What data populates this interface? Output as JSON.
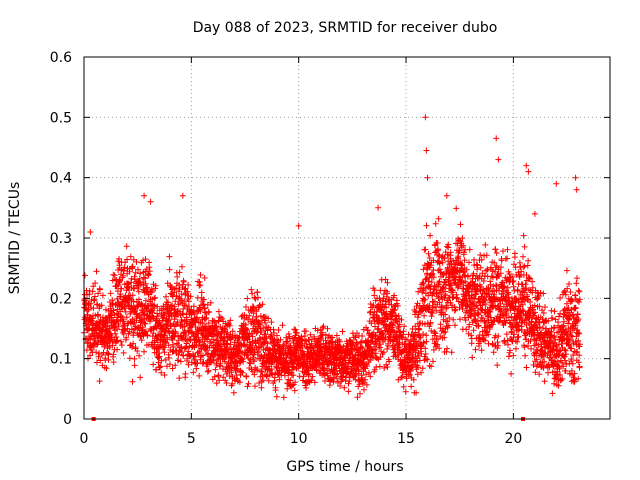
{
  "chart_data": {
    "type": "scatter",
    "title": "Day 088 of 2023, SRMTID for receiver dubo",
    "xlabel": "GPS time / hours",
    "ylabel": "SRMTID / TECUs",
    "xlim": [
      0,
      24.5
    ],
    "ylim": [
      0,
      0.6
    ],
    "x_ticks": [
      0,
      5,
      10,
      15,
      20
    ],
    "x_tick_labels": [
      "0",
      "5",
      "10",
      "15",
      "20"
    ],
    "y_ticks": [
      0,
      0.1,
      0.2,
      0.3,
      0.4,
      0.5,
      0.6
    ],
    "y_tick_labels": [
      "0",
      "0.1",
      "0.2",
      "0.3",
      "0.4",
      "0.5",
      "0.6"
    ],
    "grid": true,
    "marker": "+",
    "color": "#ff0000",
    "series": [
      {
        "name": "SRMTID",
        "hourly_profile": {
          "x": [
            0,
            0.5,
            1,
            1.5,
            2,
            2.5,
            3,
            3.5,
            4,
            4.5,
            5,
            5.5,
            6,
            6.5,
            7,
            7.5,
            8,
            8.5,
            9,
            9.5,
            10,
            10.5,
            11,
            11.5,
            12,
            12.5,
            13,
            13.5,
            14,
            14.5,
            15,
            15.5,
            16,
            16.5,
            17,
            17.5,
            18,
            18.5,
            19,
            19.5,
            20,
            20.5,
            21,
            21.5,
            22,
            22.5,
            23
          ],
          "median": [
            0.17,
            0.16,
            0.13,
            0.18,
            0.2,
            0.17,
            0.2,
            0.12,
            0.16,
            0.17,
            0.14,
            0.16,
            0.12,
            0.12,
            0.1,
            0.13,
            0.14,
            0.12,
            0.1,
            0.09,
            0.11,
            0.1,
            0.11,
            0.1,
            0.1,
            0.1,
            0.09,
            0.15,
            0.16,
            0.15,
            0.09,
            0.12,
            0.21,
            0.2,
            0.22,
            0.25,
            0.19,
            0.2,
            0.19,
            0.2,
            0.19,
            0.2,
            0.14,
            0.13,
            0.11,
            0.15,
            0.14
          ],
          "spread": [
            0.05,
            0.06,
            0.05,
            0.07,
            0.07,
            0.08,
            0.07,
            0.05,
            0.07,
            0.08,
            0.06,
            0.06,
            0.05,
            0.05,
            0.04,
            0.05,
            0.07,
            0.05,
            0.04,
            0.04,
            0.05,
            0.04,
            0.04,
            0.04,
            0.04,
            0.04,
            0.04,
            0.07,
            0.06,
            0.05,
            0.04,
            0.06,
            0.1,
            0.09,
            0.08,
            0.07,
            0.07,
            0.07,
            0.09,
            0.07,
            0.07,
            0.08,
            0.07,
            0.05,
            0.05,
            0.08,
            0.08
          ]
        },
        "points_per_hour": 180,
        "x_range": [
          0,
          23.1
        ]
      }
    ],
    "outliers": [
      {
        "x": 0.3,
        "y": 0.31
      },
      {
        "x": 2.8,
        "y": 0.37
      },
      {
        "x": 3.1,
        "y": 0.36
      },
      {
        "x": 4.6,
        "y": 0.37
      },
      {
        "x": 10.0,
        "y": 0.32
      },
      {
        "x": 13.7,
        "y": 0.35
      },
      {
        "x": 15.9,
        "y": 0.5
      },
      {
        "x": 15.95,
        "y": 0.445
      },
      {
        "x": 16.0,
        "y": 0.4
      },
      {
        "x": 19.2,
        "y": 0.465
      },
      {
        "x": 19.3,
        "y": 0.43
      },
      {
        "x": 20.6,
        "y": 0.42
      },
      {
        "x": 20.7,
        "y": 0.41
      },
      {
        "x": 22.0,
        "y": 0.39
      },
      {
        "x": 22.9,
        "y": 0.4
      },
      {
        "x": 22.95,
        "y": 0.38
      },
      {
        "x": 21.0,
        "y": 0.34
      },
      {
        "x": 16.9,
        "y": 0.37
      }
    ],
    "zero_markers": [
      {
        "x": 0.45,
        "y": 0
      },
      {
        "x": 20.45,
        "y": 0
      }
    ]
  }
}
